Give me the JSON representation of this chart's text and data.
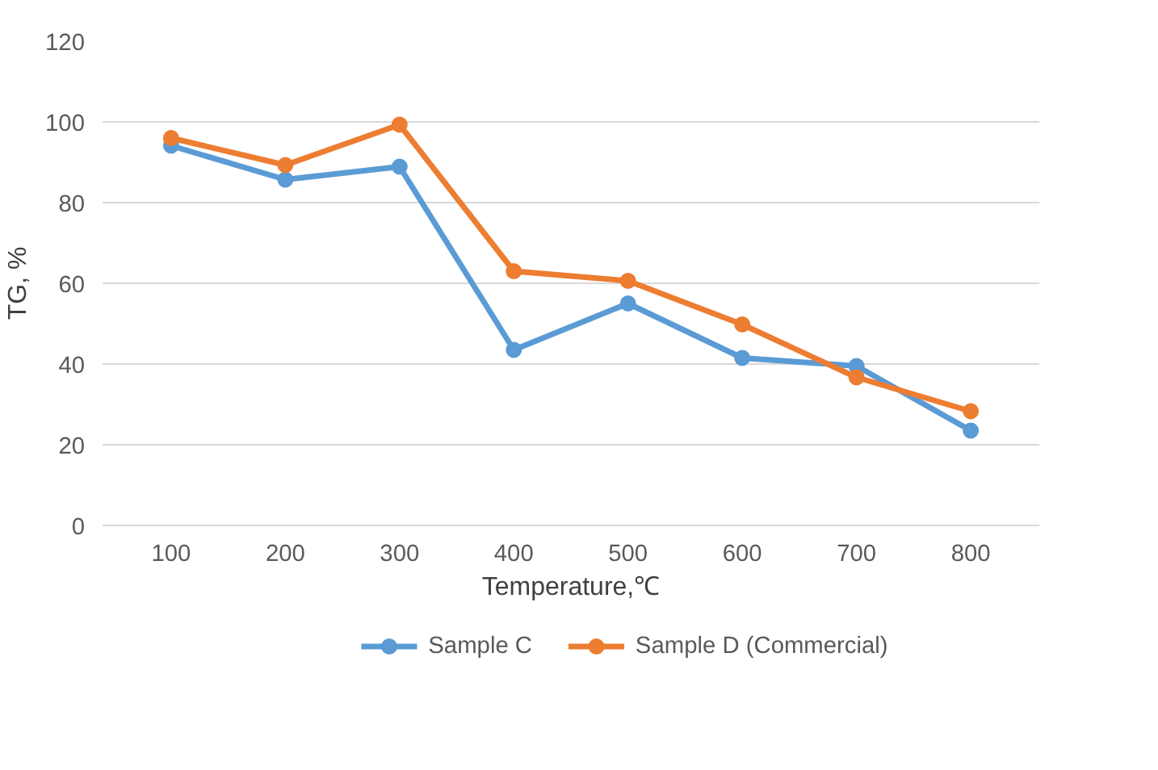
{
  "chart_data": {
    "type": "line",
    "xlabel": "Temperature,℃",
    "ylabel": "TG, %",
    "categories": [
      "100",
      "200",
      "300",
      "400",
      "500",
      "600",
      "700",
      "800"
    ],
    "series": [
      {
        "name": "Sample C",
        "color": "#5b9bd5",
        "values": [
          94.1,
          85.7,
          88.9,
          43.5,
          55,
          41.5,
          39.5,
          23.5
        ]
      },
      {
        "name": "Sample D (Commercial)",
        "color": "#ed7d31",
        "values": [
          96,
          89.3,
          99.3,
          63,
          60.6,
          49.8,
          36.7,
          28.3
        ]
      }
    ],
    "ylim": [
      0,
      120
    ],
    "yticks": [
      0,
      20,
      40,
      60,
      80,
      100,
      120
    ],
    "grid": "y",
    "legend": "bottom",
    "marker": "circle",
    "line_style": "solid"
  }
}
